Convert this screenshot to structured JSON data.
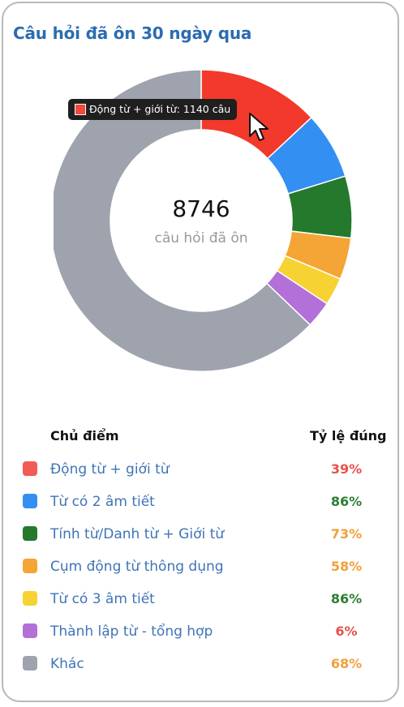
{
  "card": {
    "title": "Câu hỏi đã ôn 30 ngày qua"
  },
  "donut": {
    "total": "8746",
    "total_label": "câu hỏi đã ôn",
    "tooltip": "Động từ + giới từ: 1140 câu"
  },
  "chart_data": {
    "type": "pie",
    "categories": [
      "Động từ + giới từ",
      "Từ có 2 âm tiết",
      "Tính từ/Danh từ + Giới từ",
      "Cụm động từ thông dụng",
      "Từ có 3 âm tiết",
      "Thành lập từ - tổng hợp",
      "Khác"
    ],
    "values": [
      1140,
      630,
      580,
      390,
      260,
      250,
      5496
    ],
    "colors": [
      "#f2392b",
      "#3390f2",
      "#24792c",
      "#f5a436",
      "#f7d233",
      "#b270d8",
      "#9ea3ae"
    ]
  },
  "legend": {
    "header_topic": "Chủ điểm",
    "header_rate": "Tỷ lệ đúng",
    "items": [
      {
        "label": "Động từ + giới từ",
        "rate": "39%",
        "color": "#f25c56",
        "rate_color": "#e5534b"
      },
      {
        "label": "Từ có 2 âm tiết",
        "rate": "86%",
        "color": "#3390f2",
        "rate_color": "#2e7d32"
      },
      {
        "label": "Tính từ/Danh từ + Giới từ",
        "rate": "73%",
        "color": "#24792c",
        "rate_color": "#f0a03b"
      },
      {
        "label": "Cụm động từ thông dụng",
        "rate": "58%",
        "color": "#f5a436",
        "rate_color": "#f0a03b"
      },
      {
        "label": "Từ có 3 âm tiết",
        "rate": "86%",
        "color": "#f7d233",
        "rate_color": "#2e7d32"
      },
      {
        "label": "Thành lập từ - tổng hợp",
        "rate": "6%",
        "color": "#b270d8",
        "rate_color": "#e5534b"
      },
      {
        "label": "Khác",
        "rate": "68%",
        "color": "#9ea3ae",
        "rate_color": "#f0a03b"
      }
    ]
  }
}
